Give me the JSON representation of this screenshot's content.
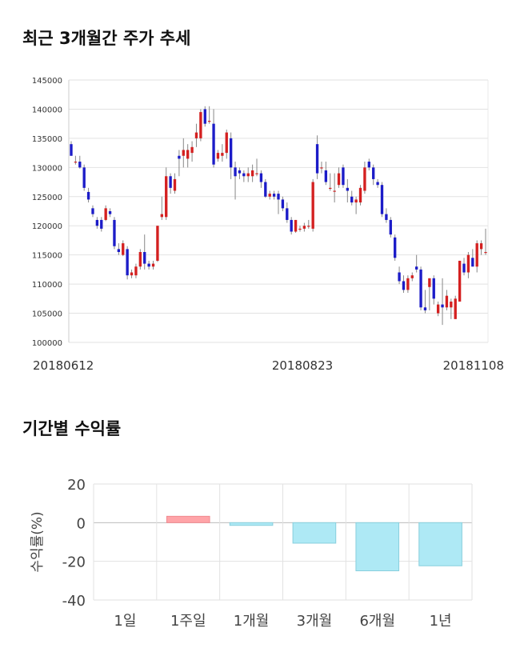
{
  "section1_title": "최근 3개월간 주가 추세",
  "section2_title": "기간별 수익률",
  "chart_data": [
    {
      "type": "candlestick",
      "yticks": [
        "145000",
        "140000",
        "135000",
        "130000",
        "125000",
        "120000",
        "115000",
        "110000",
        "105000",
        "100000"
      ],
      "ylim": [
        100000,
        145000
      ],
      "xtick_labels": [
        "20180612",
        "20180823",
        "20181108"
      ],
      "candles": [
        [
          134000,
          134500,
          132000,
          132000
        ],
        [
          131000,
          132000,
          130500,
          131000
        ],
        [
          131000,
          132000,
          129800,
          130000
        ],
        [
          130000,
          130500,
          126000,
          126500
        ],
        [
          125800,
          126500,
          124000,
          124500
        ],
        [
          123000,
          123500,
          121500,
          122000
        ],
        [
          121000,
          121500,
          119500,
          120000
        ],
        [
          121000,
          121500,
          119000,
          119500
        ],
        [
          121000,
          123500,
          120800,
          123000
        ],
        [
          122500,
          123000,
          121500,
          122000
        ],
        [
          121000,
          121500,
          116000,
          116500
        ],
        [
          116000,
          117000,
          115000,
          115500
        ],
        [
          115000,
          117500,
          114800,
          117000
        ],
        [
          116000,
          116500,
          110800,
          111500
        ],
        [
          111500,
          112500,
          111000,
          112000
        ],
        [
          111500,
          113500,
          111000,
          113000
        ],
        [
          113000,
          116000,
          112500,
          115500
        ],
        [
          115500,
          118500,
          112500,
          113500
        ],
        [
          113500,
          114000,
          112500,
          113000
        ],
        [
          113000,
          114000,
          112500,
          113500
        ],
        [
          114000,
          120000,
          113800,
          120000
        ],
        [
          121500,
          125000,
          121000,
          122000
        ],
        [
          121500,
          130000,
          121000,
          128500
        ],
        [
          128500,
          129000,
          125500,
          126500
        ],
        [
          126000,
          129000,
          125500,
          128000
        ],
        [
          132000,
          133000,
          128500,
          131500
        ],
        [
          132000,
          135000,
          130000,
          133000
        ],
        [
          131500,
          134000,
          130000,
          133000
        ],
        [
          132500,
          134500,
          131000,
          133500
        ],
        [
          135000,
          137500,
          133500,
          136000
        ],
        [
          135000,
          140000,
          134500,
          139500
        ],
        [
          140000,
          140500,
          137000,
          137500
        ],
        [
          138000,
          140500,
          137500,
          138000
        ],
        [
          137500,
          140000,
          130000,
          130500
        ],
        [
          131500,
          133000,
          131000,
          132500
        ],
        [
          132000,
          134000,
          131000,
          132500
        ],
        [
          132500,
          136500,
          131500,
          136000
        ],
        [
          135000,
          136000,
          128000,
          130000
        ],
        [
          130000,
          131000,
          124500,
          128500
        ],
        [
          129500,
          130000,
          128000,
          129000
        ],
        [
          129000,
          129500,
          127500,
          128500
        ],
        [
          128500,
          130000,
          127500,
          129000
        ],
        [
          128500,
          130500,
          127500,
          129500
        ],
        [
          129000,
          131500,
          128500,
          129000
        ],
        [
          129000,
          129500,
          126500,
          127500
        ],
        [
          127500,
          128000,
          124800,
          125000
        ],
        [
          125000,
          126000,
          124500,
          125500
        ],
        [
          125500,
          126000,
          124500,
          125000
        ],
        [
          125500,
          126000,
          122000,
          124500
        ],
        [
          124500,
          125000,
          122500,
          123000
        ],
        [
          123000,
          124000,
          120500,
          121000
        ],
        [
          121000,
          121500,
          118500,
          119000
        ],
        [
          119000,
          121000,
          118800,
          121000
        ],
        [
          119500,
          120000,
          119000,
          119500
        ],
        [
          119500,
          120500,
          119000,
          120000
        ],
        [
          120000,
          121000,
          119500,
          120000
        ],
        [
          119500,
          128000,
          119000,
          127500
        ],
        [
          134000,
          135500,
          128000,
          129000
        ],
        [
          130000,
          131000,
          129000,
          130000
        ],
        [
          129500,
          131000,
          127000,
          127500
        ],
        [
          126500,
          129000,
          126000,
          126500
        ],
        [
          126000,
          129000,
          124000,
          126000
        ],
        [
          127000,
          130000,
          126500,
          129000
        ],
        [
          130000,
          130500,
          126500,
          127000
        ],
        [
          126500,
          128000,
          124000,
          126000
        ],
        [
          125000,
          126000,
          123500,
          124000
        ],
        [
          124000,
          125000,
          122000,
          124500
        ],
        [
          124000,
          127000,
          123500,
          126500
        ],
        [
          126000,
          131000,
          125500,
          130000
        ],
        [
          131000,
          131500,
          129500,
          130000
        ],
        [
          130000,
          130500,
          127000,
          128000
        ],
        [
          127500,
          128000,
          126500,
          127000
        ],
        [
          127000,
          127500,
          121500,
          122000
        ],
        [
          122000,
          123000,
          120500,
          121000
        ],
        [
          121000,
          121500,
          118000,
          118500
        ],
        [
          118000,
          118500,
          114000,
          114500
        ],
        [
          112000,
          113000,
          110000,
          110500
        ],
        [
          110500,
          111500,
          108500,
          109000
        ],
        [
          109000,
          111500,
          108500,
          111000
        ],
        [
          111000,
          112000,
          110500,
          111500
        ],
        [
          113000,
          115000,
          112000,
          112500
        ],
        [
          112500,
          113000,
          105500,
          106000
        ],
        [
          106000,
          109000,
          105000,
          105500
        ],
        [
          109500,
          111000,
          105500,
          111000
        ],
        [
          111000,
          111500,
          106500,
          107500
        ],
        [
          105000,
          107000,
          104500,
          106500
        ],
        [
          106500,
          111000,
          103000,
          106000
        ],
        [
          106000,
          109000,
          105500,
          108000
        ],
        [
          106000,
          107500,
          104000,
          107000
        ],
        [
          104000,
          108000,
          104000,
          107500
        ],
        [
          107000,
          114000,
          107000,
          114000
        ],
        [
          113500,
          114500,
          111500,
          112000
        ],
        [
          112000,
          115500,
          111000,
          115000
        ],
        [
          114500,
          116000,
          113000,
          113000
        ],
        [
          113000,
          117500,
          112000,
          117000
        ],
        [
          116000,
          117500,
          115000,
          117000
        ],
        [
          115500,
          119500,
          115000,
          115500
        ]
      ]
    },
    {
      "type": "bar",
      "title": "",
      "xlabel": "",
      "ylabel": "수익률(%)",
      "ylim": [
        -40,
        20
      ],
      "yticks": [
        "20",
        "0",
        "-20",
        "-40"
      ],
      "categories": [
        "1일",
        "1주일",
        "1개월",
        "3개월",
        "6개월",
        "1년"
      ],
      "values": [
        0,
        3.3,
        -1.4,
        -10.6,
        -24.9,
        -22.3
      ],
      "colors": {
        "positive": "#ffa4a8",
        "negative": "#aee9f5",
        "negative_stroke": "#88cfdd"
      }
    }
  ],
  "colors": {
    "up": "#d42020",
    "down": "#1c1cc8",
    "grid": "#e2e2e2"
  }
}
